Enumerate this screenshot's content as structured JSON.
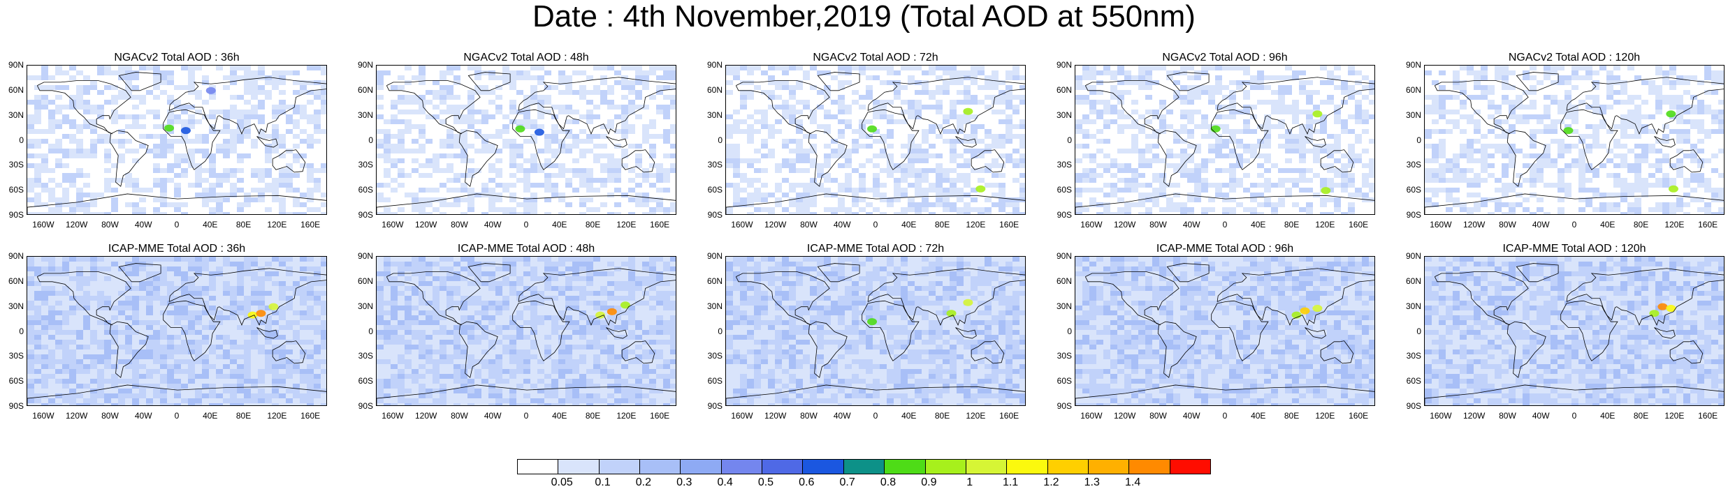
{
  "figure": {
    "title": "Date : 4th November,2019 (Total AOD at 550nm)"
  },
  "panels": [
    {
      "title": "NGACv2 Total AOD : 36h"
    },
    {
      "title": "NGACv2 Total AOD : 48h"
    },
    {
      "title": "NGACv2 Total AOD : 72h"
    },
    {
      "title": "NGACv2 Total AOD : 96h"
    },
    {
      "title": "NGACv2 Total AOD : 120h"
    },
    {
      "title": "ICAP-MME Total AOD : 36h"
    },
    {
      "title": "ICAP-MME Total AOD : 48h"
    },
    {
      "title": "ICAP-MME Total AOD : 72h"
    },
    {
      "title": "ICAP-MME Total AOD : 96h"
    },
    {
      "title": "ICAP-MME Total AOD : 120h"
    }
  ],
  "axes": {
    "lat_ticks": [
      "90N",
      "60N",
      "30N",
      "0",
      "30S",
      "60S",
      "90S"
    ],
    "lon_ticks": [
      "160W",
      "120W",
      "80W",
      "40W",
      "0",
      "40E",
      "80E",
      "120E",
      "160E"
    ]
  },
  "colorbar": {
    "labels": [
      "0.05",
      "0.1",
      "0.2",
      "0.3",
      "0.4",
      "0.5",
      "0.6",
      "0.7",
      "0.8",
      "0.9",
      "1",
      "1.1",
      "1.2",
      "1.3",
      "1.4"
    ],
    "colors": [
      "#ffffff",
      "#d9e4fb",
      "#c1d2fa",
      "#a8bff7",
      "#8eaaf4",
      "#7486ee",
      "#4f69e6",
      "#1b57e0",
      "#0d9188",
      "#4edc17",
      "#a7f01c",
      "#d6f535",
      "#fbf90e",
      "#ffcf00",
      "#ffb000",
      "#ff8a00",
      "#ff0d00"
    ]
  },
  "hotspots": [
    [
      {
        "lon": -10,
        "lat": 15,
        "v": 0.8
      },
      {
        "lon": 10,
        "lat": 12,
        "v": 0.6
      },
      {
        "lon": 40,
        "lat": 60,
        "v": 0.4
      }
    ],
    [
      {
        "lon": -8,
        "lat": 14,
        "v": 0.8
      },
      {
        "lon": 15,
        "lat": 10,
        "v": 0.6
      }
    ],
    [
      {
        "lon": -5,
        "lat": 14,
        "v": 0.8
      },
      {
        "lon": 110,
        "lat": 35,
        "v": 0.9
      },
      {
        "lon": 125,
        "lat": -58,
        "v": 0.9
      }
    ],
    [
      {
        "lon": -12,
        "lat": 14,
        "v": 0.8
      },
      {
        "lon": 110,
        "lat": 32,
        "v": 0.9
      },
      {
        "lon": 120,
        "lat": -60,
        "v": 0.9
      }
    ],
    [
      {
        "lon": -8,
        "lat": 12,
        "v": 0.8
      },
      {
        "lon": 115,
        "lat": 32,
        "v": 0.8
      },
      {
        "lon": 118,
        "lat": -58,
        "v": 0.9
      }
    ],
    [
      {
        "lon": 90,
        "lat": 20,
        "v": 1.1
      },
      {
        "lon": 100,
        "lat": 22,
        "v": 1.4
      },
      {
        "lon": 115,
        "lat": 30,
        "v": 1.0
      }
    ],
    [
      {
        "lon": 88,
        "lat": 20,
        "v": 1.0
      },
      {
        "lon": 102,
        "lat": 24,
        "v": 1.4
      },
      {
        "lon": 118,
        "lat": 32,
        "v": 0.9
      }
    ],
    [
      {
        "lon": -5,
        "lat": 12,
        "v": 0.8
      },
      {
        "lon": 90,
        "lat": 22,
        "v": 0.9
      },
      {
        "lon": 110,
        "lat": 35,
        "v": 1.0
      }
    ],
    [
      {
        "lon": 85,
        "lat": 20,
        "v": 0.9
      },
      {
        "lon": 110,
        "lat": 28,
        "v": 1.0
      },
      {
        "lon": 95,
        "lat": 25,
        "v": 1.2
      }
    ],
    [
      {
        "lon": 105,
        "lat": 30,
        "v": 1.4
      },
      {
        "lon": 115,
        "lat": 28,
        "v": 1.1
      },
      {
        "lon": 95,
        "lat": 22,
        "v": 0.9
      }
    ]
  ]
}
